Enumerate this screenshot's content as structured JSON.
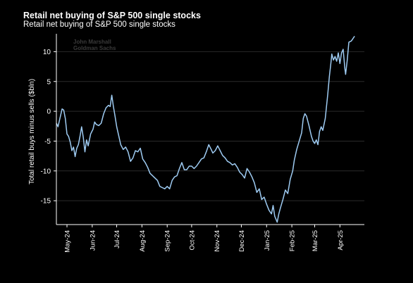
{
  "header": {
    "title": "Retail net buying of S&P 500 single stocks",
    "subtitle": "Retail net buying of S&P 500 single stocks"
  },
  "watermark": {
    "line1": "John Marshall",
    "line2": "Goldman Sachs"
  },
  "colors": {
    "background": "#000000",
    "line": "#9ecbf2",
    "text": "#ffffff"
  },
  "chart_data": {
    "type": "line",
    "title": "Retail net buying of S&P 500 single stocks",
    "subtitle": "Retail net buying of S&P 500 single stocks",
    "xlabel": "",
    "ylabel": "Total retail buys minus sells ($bln)",
    "ylim": [
      -19,
      13
    ],
    "yticks": [
      10,
      5,
      0,
      -5,
      -10,
      -15
    ],
    "grid": "horizontal",
    "xlim": [
      "2024-04-18",
      "2025-05-01"
    ],
    "xticks": [
      {
        "date": "2024-05-01",
        "label": "May-24"
      },
      {
        "date": "2024-06-01",
        "label": "Jun-24"
      },
      {
        "date": "2024-07-01",
        "label": "Jul-24"
      },
      {
        "date": "2024-08-01",
        "label": "Aug-24"
      },
      {
        "date": "2024-09-01",
        "label": "Sep-24"
      },
      {
        "date": "2024-10-01",
        "label": "Oct-24"
      },
      {
        "date": "2024-11-01",
        "label": "Nov-24"
      },
      {
        "date": "2024-12-01",
        "label": "Dec-24"
      },
      {
        "date": "2025-01-01",
        "label": "Jan-25"
      },
      {
        "date": "2025-02-01",
        "label": "Feb-25"
      },
      {
        "date": "2025-03-01",
        "label": "Mar-25"
      },
      {
        "date": "2025-04-01",
        "label": "Apr-25"
      }
    ],
    "series": [
      {
        "points": [
          [
            "2024-04-18",
            -2.0
          ],
          [
            "2024-04-20",
            -2.6
          ],
          [
            "2024-04-22",
            -1.4
          ],
          [
            "2024-04-25",
            0.4
          ],
          [
            "2024-04-27",
            0.2
          ],
          [
            "2024-04-29",
            -1.2
          ],
          [
            "2024-05-01",
            -3.8
          ],
          [
            "2024-05-03",
            -4.2
          ],
          [
            "2024-05-05",
            -5.2
          ],
          [
            "2024-05-07",
            -6.6
          ],
          [
            "2024-05-09",
            -6.0
          ],
          [
            "2024-05-11",
            -7.6
          ],
          [
            "2024-05-13",
            -6.2
          ],
          [
            "2024-05-15",
            -5.6
          ],
          [
            "2024-05-17",
            -4.2
          ],
          [
            "2024-05-19",
            -2.6
          ],
          [
            "2024-05-21",
            -4.4
          ],
          [
            "2024-05-23",
            -6.8
          ],
          [
            "2024-05-25",
            -4.8
          ],
          [
            "2024-05-27",
            -5.8
          ],
          [
            "2024-05-30",
            -3.8
          ],
          [
            "2024-06-02",
            -3.0
          ],
          [
            "2024-06-04",
            -1.8
          ],
          [
            "2024-06-06",
            -2.2
          ],
          [
            "2024-06-09",
            -2.4
          ],
          [
            "2024-06-12",
            -2.0
          ],
          [
            "2024-06-15",
            -0.4
          ],
          [
            "2024-06-18",
            0.6
          ],
          [
            "2024-06-21",
            1.0
          ],
          [
            "2024-06-23",
            0.8
          ],
          [
            "2024-06-25",
            2.7
          ],
          [
            "2024-06-27",
            0.8
          ],
          [
            "2024-06-29",
            -0.8
          ],
          [
            "2024-07-01",
            -2.6
          ],
          [
            "2024-07-03",
            -3.8
          ],
          [
            "2024-07-06",
            -5.6
          ],
          [
            "2024-07-09",
            -6.4
          ],
          [
            "2024-07-12",
            -6.0
          ],
          [
            "2024-07-15",
            -6.8
          ],
          [
            "2024-07-18",
            -8.4
          ],
          [
            "2024-07-21",
            -7.8
          ],
          [
            "2024-07-24",
            -6.6
          ],
          [
            "2024-07-27",
            -6.8
          ],
          [
            "2024-07-30",
            -6.2
          ],
          [
            "2024-08-02",
            -8.0
          ],
          [
            "2024-08-05",
            -8.6
          ],
          [
            "2024-08-08",
            -9.4
          ],
          [
            "2024-08-11",
            -10.4
          ],
          [
            "2024-08-14",
            -10.8
          ],
          [
            "2024-08-17",
            -11.2
          ],
          [
            "2024-08-20",
            -11.6
          ],
          [
            "2024-08-23",
            -12.6
          ],
          [
            "2024-08-26",
            -12.8
          ],
          [
            "2024-08-29",
            -13.0
          ],
          [
            "2024-09-01",
            -12.6
          ],
          [
            "2024-09-04",
            -13.0
          ],
          [
            "2024-09-07",
            -11.6
          ],
          [
            "2024-09-10",
            -11.0
          ],
          [
            "2024-09-13",
            -10.8
          ],
          [
            "2024-09-16",
            -9.6
          ],
          [
            "2024-09-19",
            -8.6
          ],
          [
            "2024-09-22",
            -9.8
          ],
          [
            "2024-09-25",
            -9.8
          ],
          [
            "2024-09-28",
            -9.2
          ],
          [
            "2024-10-01",
            -9.2
          ],
          [
            "2024-10-04",
            -9.6
          ],
          [
            "2024-10-07",
            -9.2
          ],
          [
            "2024-10-10",
            -8.6
          ],
          [
            "2024-10-13",
            -8.0
          ],
          [
            "2024-10-16",
            -7.8
          ],
          [
            "2024-10-19",
            -6.8
          ],
          [
            "2024-10-22",
            -5.6
          ],
          [
            "2024-10-25",
            -6.4
          ],
          [
            "2024-10-27",
            -7.0
          ],
          [
            "2024-10-30",
            -6.6
          ],
          [
            "2024-11-02",
            -5.8
          ],
          [
            "2024-11-05",
            -6.6
          ],
          [
            "2024-11-08",
            -7.4
          ],
          [
            "2024-11-11",
            -7.8
          ],
          [
            "2024-11-14",
            -8.4
          ],
          [
            "2024-11-17",
            -8.6
          ],
          [
            "2024-11-20",
            -9.0
          ],
          [
            "2024-11-23",
            -8.8
          ],
          [
            "2024-11-26",
            -9.4
          ],
          [
            "2024-11-29",
            -10.2
          ],
          [
            "2024-12-02",
            -10.6
          ],
          [
            "2024-12-05",
            -11.2
          ],
          [
            "2024-12-08",
            -9.6
          ],
          [
            "2024-12-11",
            -10.2
          ],
          [
            "2024-12-14",
            -11.0
          ],
          [
            "2024-12-17",
            -12.0
          ],
          [
            "2024-12-20",
            -13.6
          ],
          [
            "2024-12-23",
            -13.0
          ],
          [
            "2024-12-26",
            -14.8
          ],
          [
            "2024-12-29",
            -14.4
          ],
          [
            "2025-01-01",
            -15.6
          ],
          [
            "2025-01-04",
            -16.6
          ],
          [
            "2025-01-07",
            -17.2
          ],
          [
            "2025-01-09",
            -15.8
          ],
          [
            "2025-01-11",
            -17.6
          ],
          [
            "2025-01-14",
            -18.6
          ],
          [
            "2025-01-16",
            -17.2
          ],
          [
            "2025-01-18",
            -16.2
          ],
          [
            "2025-01-21",
            -14.8
          ],
          [
            "2025-01-24",
            -13.2
          ],
          [
            "2025-01-27",
            -13.8
          ],
          [
            "2025-01-30",
            -11.4
          ],
          [
            "2025-02-02",
            -10.0
          ],
          [
            "2025-02-04",
            -8.2
          ],
          [
            "2025-02-07",
            -6.4
          ],
          [
            "2025-02-10",
            -5.0
          ],
          [
            "2025-02-13",
            -3.6
          ],
          [
            "2025-02-15",
            -1.2
          ],
          [
            "2025-02-17",
            -0.4
          ],
          [
            "2025-02-19",
            -0.8
          ],
          [
            "2025-02-22",
            -2.4
          ],
          [
            "2025-02-25",
            -4.2
          ],
          [
            "2025-02-27",
            -5.0
          ],
          [
            "2025-03-01",
            -5.4
          ],
          [
            "2025-03-03",
            -4.8
          ],
          [
            "2025-03-05",
            -5.6
          ],
          [
            "2025-03-07",
            -3.4
          ],
          [
            "2025-03-09",
            -2.6
          ],
          [
            "2025-03-11",
            -3.2
          ],
          [
            "2025-03-14",
            -1.2
          ],
          [
            "2025-03-17",
            2.8
          ],
          [
            "2025-03-19",
            5.8
          ],
          [
            "2025-03-21",
            8.2
          ],
          [
            "2025-03-22",
            9.6
          ],
          [
            "2025-03-24",
            8.6
          ],
          [
            "2025-03-26",
            9.2
          ],
          [
            "2025-03-28",
            8.4
          ],
          [
            "2025-03-30",
            9.8
          ],
          [
            "2025-04-01",
            8.0
          ],
          [
            "2025-04-03",
            9.8
          ],
          [
            "2025-04-05",
            10.4
          ],
          [
            "2025-04-07",
            7.2
          ],
          [
            "2025-04-08",
            6.2
          ],
          [
            "2025-04-10",
            8.6
          ],
          [
            "2025-04-12",
            11.6
          ],
          [
            "2025-04-15",
            11.8
          ],
          [
            "2025-04-18",
            12.4
          ],
          [
            "2025-04-19",
            12.6
          ]
        ]
      }
    ]
  }
}
